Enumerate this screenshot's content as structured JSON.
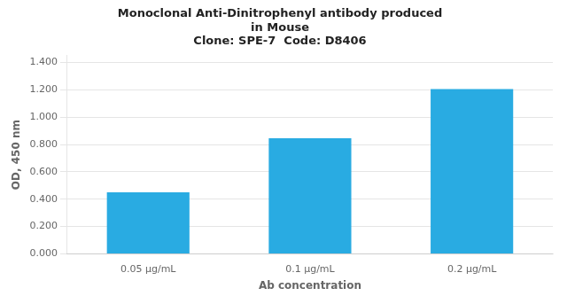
{
  "chart_data": {
    "type": "bar",
    "title": [
      "Monoclonal Anti-Dinitrophenyl antibody produced",
      "in Mouse",
      "Clone: SPE-7  Code: D8406"
    ],
    "categories": [
      "0.05 μg/mL",
      "0.1 μg/mL",
      "0.2 μg/mL"
    ],
    "values": [
      0.45,
      0.845,
      1.205
    ],
    "color": "#29ABE2",
    "xlabel": "Ab concentration",
    "ylabel": "OD, 450 nm",
    "ylim": [
      0,
      1.45
    ],
    "yticks": [
      {
        "value": 0.0,
        "label": "0.000"
      },
      {
        "value": 0.2,
        "label": "0.200"
      },
      {
        "value": 0.4,
        "label": "0.400"
      },
      {
        "value": 0.6,
        "label": "0.600"
      },
      {
        "value": 0.8,
        "label": "0.800"
      },
      {
        "value": 1.0,
        "label": "1.000"
      },
      {
        "value": 1.2,
        "label": "1.200"
      },
      {
        "value": 1.4,
        "label": "1.400"
      }
    ],
    "grid": true
  }
}
